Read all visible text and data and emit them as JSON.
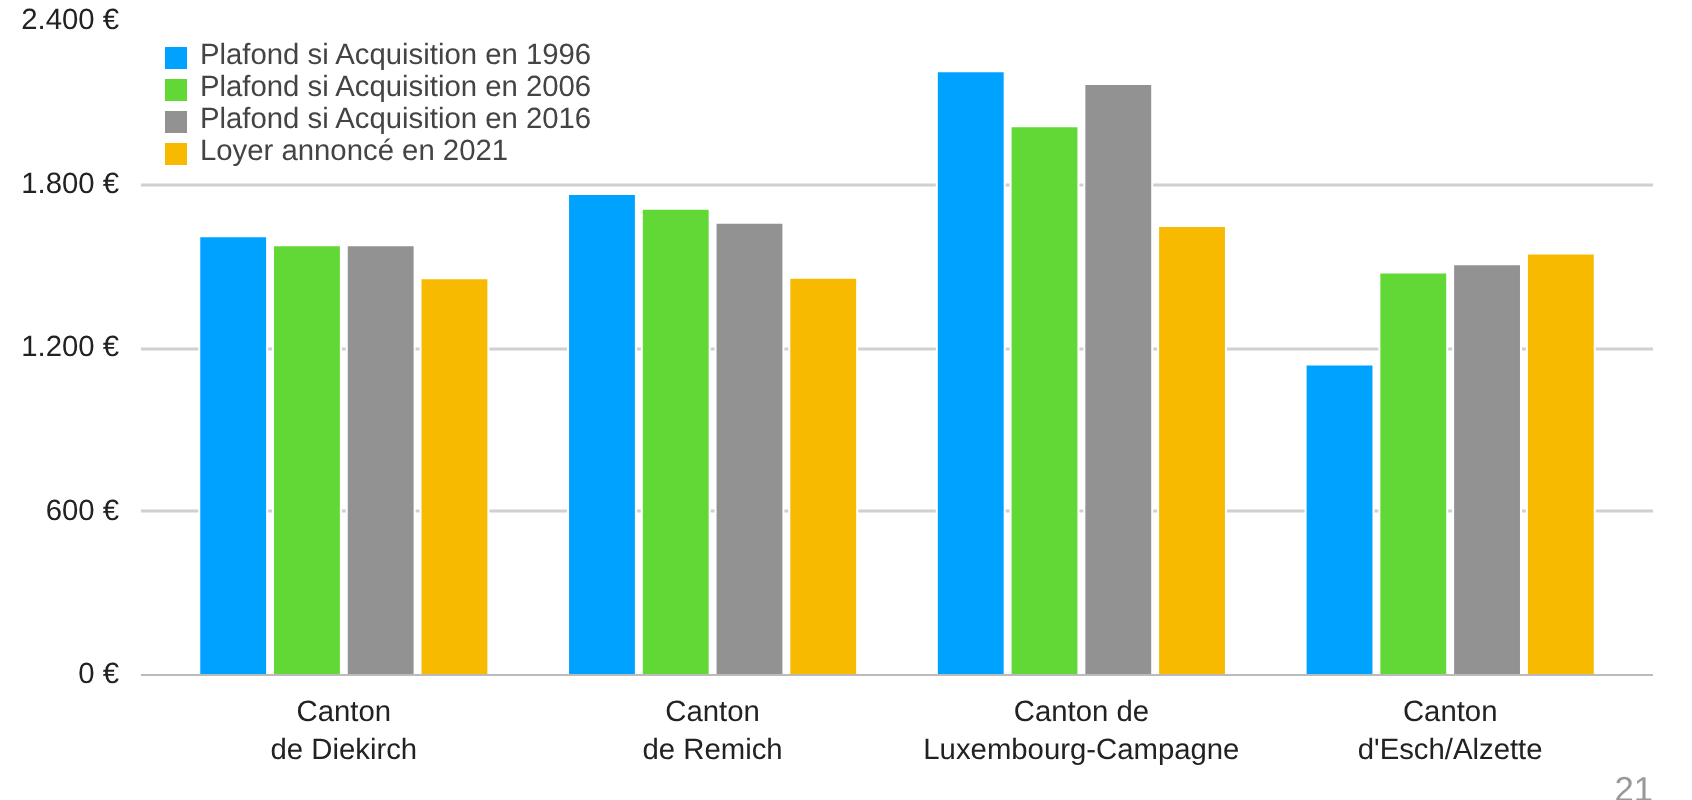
{
  "chart_data": {
    "type": "bar",
    "categories": [
      "Canton\nde Diekirch",
      "Canton\nde Remich",
      "Canton de\nLuxembourg-Campagne",
      "Canton\nd'Esch/Alzette"
    ],
    "series": [
      {
        "name": "Plafond si Acquisition en 1996",
        "color": "#00a2ff",
        "values": [
          1610,
          1765,
          2216,
          1139
        ]
      },
      {
        "name": "Plafond si Acquisition en 2006",
        "color": "#61d836",
        "values": [
          1577,
          1711,
          2014,
          1477
        ]
      },
      {
        "name": "Plafond si Acquisition en 2016",
        "color": "#929292",
        "values": [
          1577,
          1660,
          2169,
          1507
        ]
      },
      {
        "name": "Loyer annoncé en 2021",
        "color": "#f8ba00",
        "values": [
          1456,
          1458,
          1648,
          1547
        ]
      }
    ],
    "ylim": [
      0,
      2400
    ],
    "yticks": [
      {
        "value": 0,
        "label": "0 €"
      },
      {
        "value": 600,
        "label": "600 €"
      },
      {
        "value": 1200,
        "label": "1.200 €"
      },
      {
        "value": 1800,
        "label": "1.800 €"
      },
      {
        "value": 2400,
        "label": "2.400 €"
      }
    ],
    "grid": "y",
    "legend": "top left",
    "annotations": [
      "21"
    ]
  }
}
